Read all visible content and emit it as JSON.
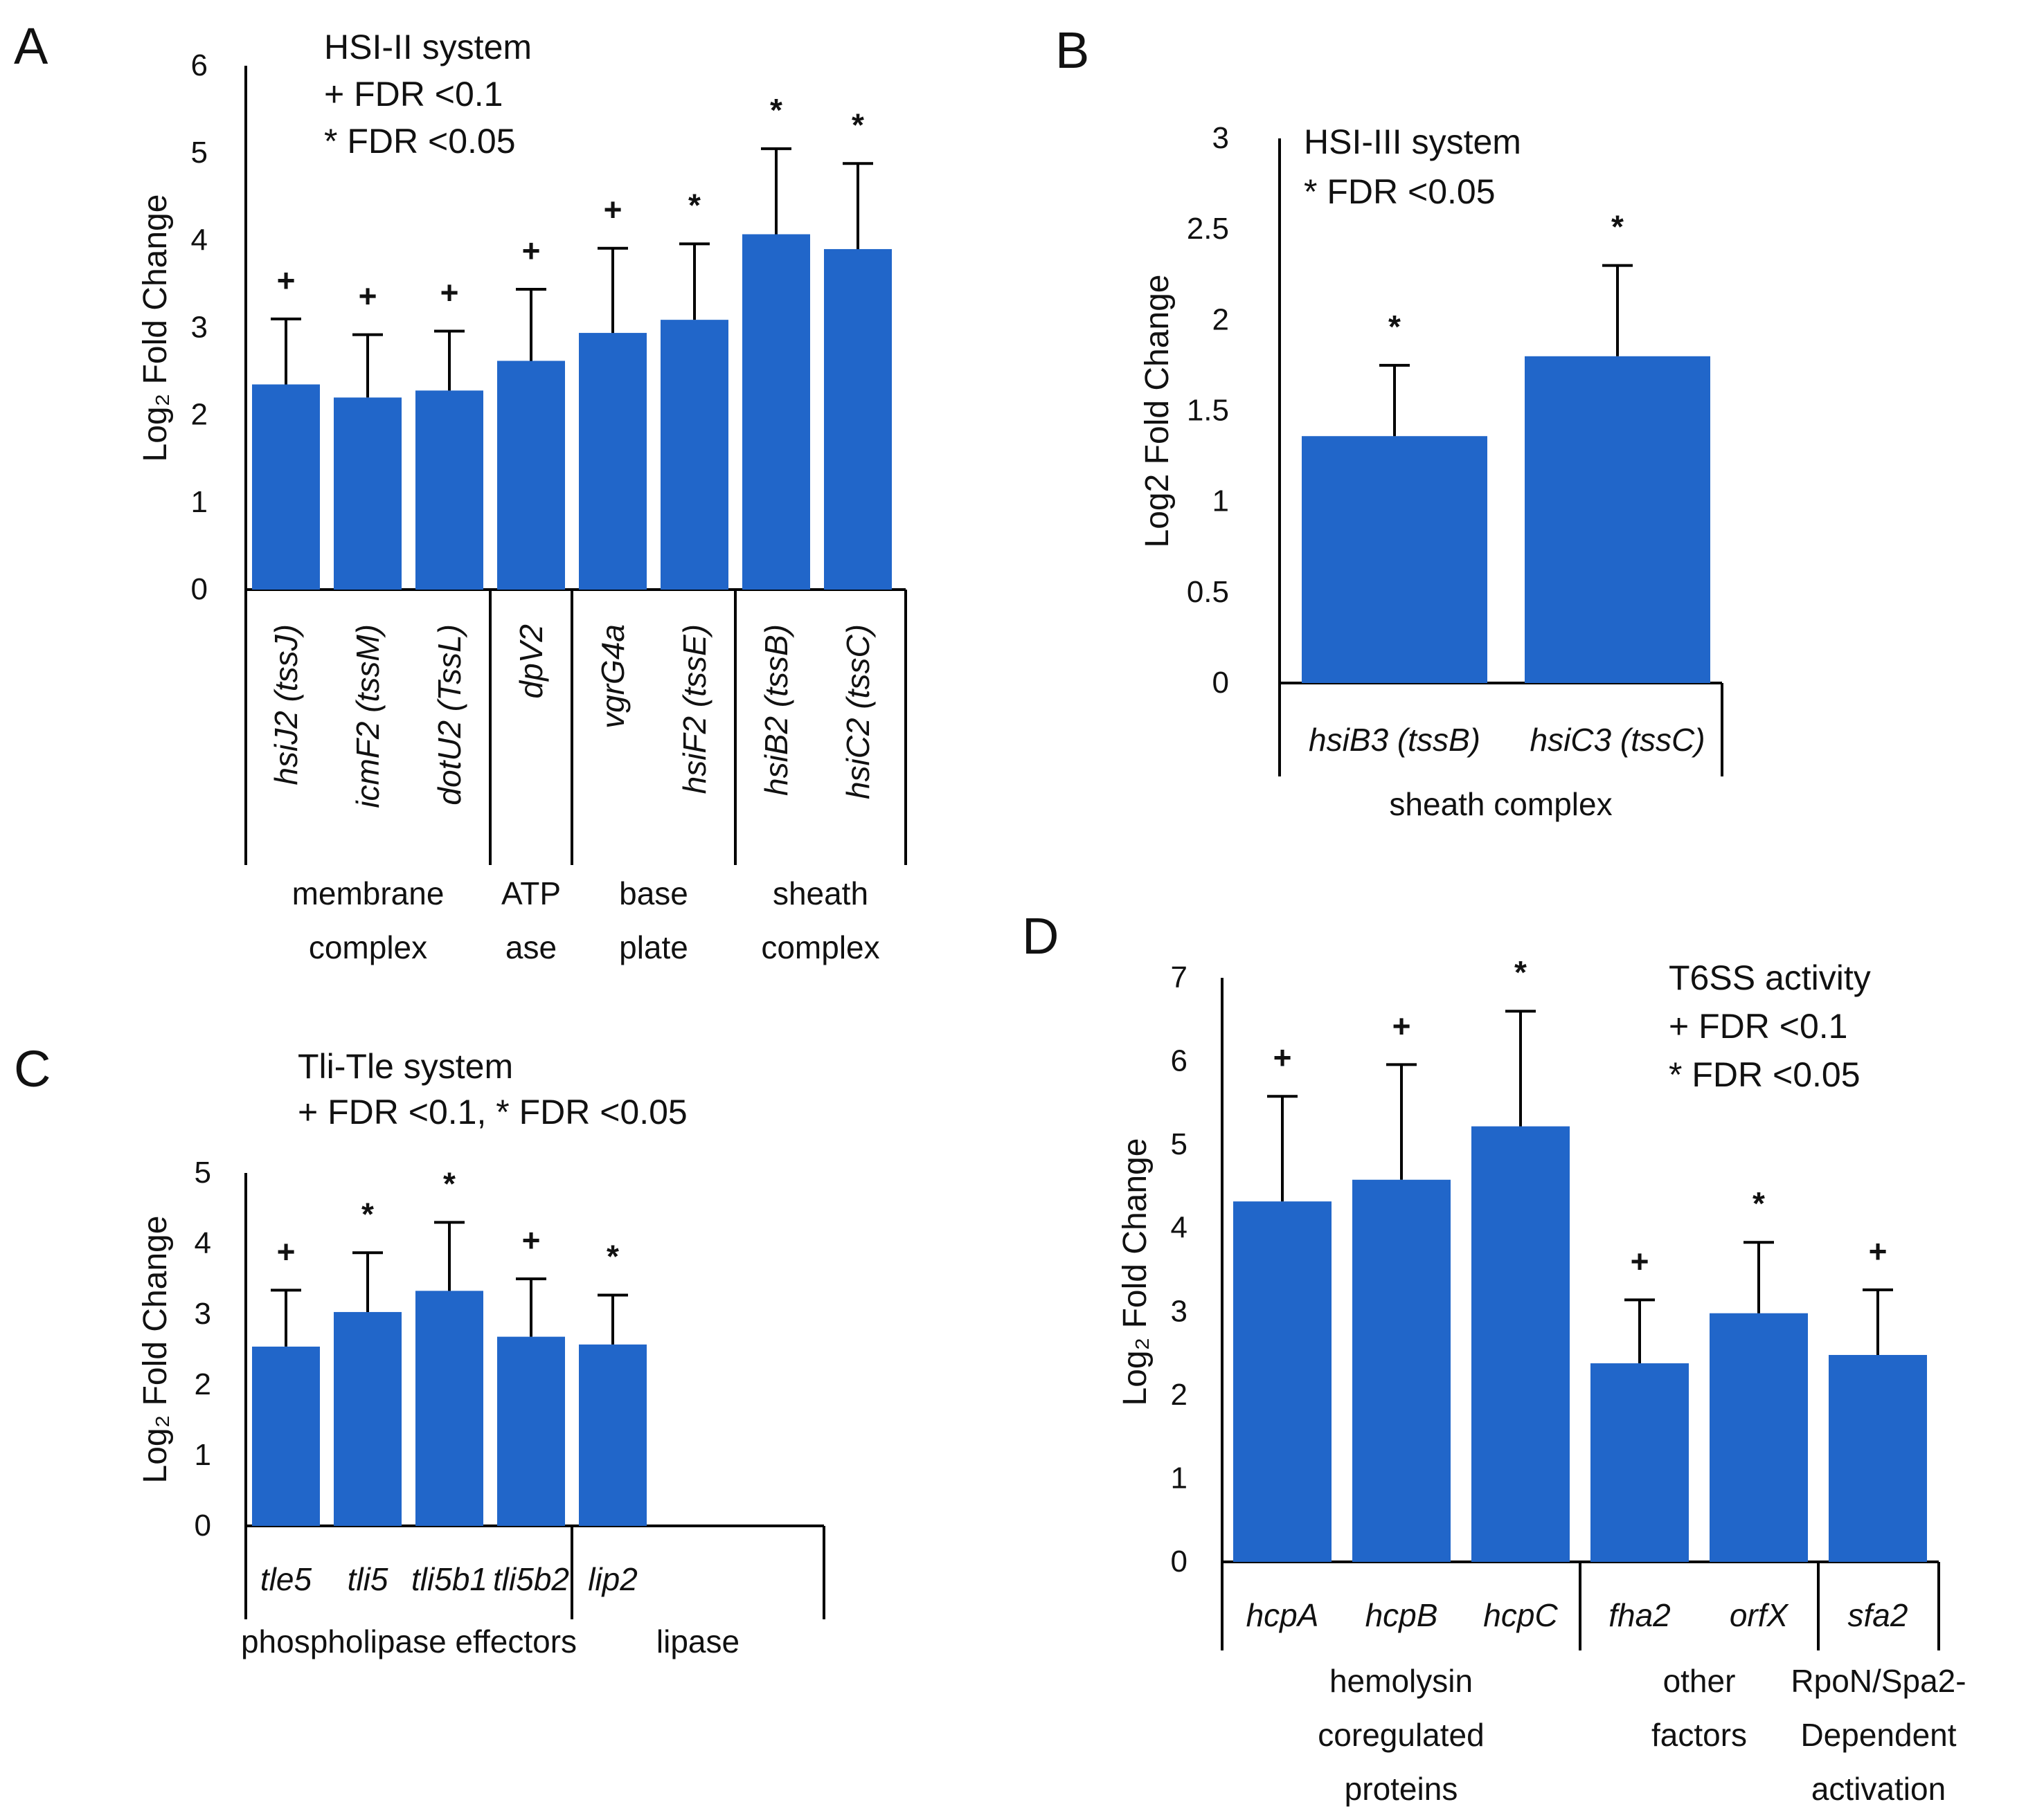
{
  "colors": {
    "bar": "#2166c9",
    "axis": "#000000",
    "text": "#111111"
  },
  "chart_data": [
    {
      "panel": "A",
      "type": "bar",
      "legend": [
        "HSI-II system",
        "+ FDR <0.1",
        "* FDR <0.05"
      ],
      "ylabel": "Log₂ Fold Change",
      "ylim": [
        0,
        6
      ],
      "yticks": [
        "0",
        "1",
        "2",
        "3",
        "4",
        "5",
        "6"
      ],
      "categories": [
        "hsiJ2 (tssJ)",
        "icmF2 (tssM)",
        "dotU2 (TssL)",
        "dpV2",
        "vgrG4a",
        "hsiF2 (tssE)",
        "hsiB2 (tssB)",
        "hsiC2 (tssC)"
      ],
      "values": [
        2.35,
        2.2,
        2.28,
        2.62,
        2.94,
        3.09,
        4.07,
        3.9
      ],
      "errors": [
        0.75,
        0.72,
        0.68,
        0.82,
        0.97,
        0.87,
        0.98,
        0.98
      ],
      "significance": [
        "+",
        "+",
        "+",
        "+",
        "+",
        "*",
        "*",
        "*"
      ],
      "groups": [
        {
          "lines": [
            "membrane",
            "complex"
          ],
          "count": 3
        },
        {
          "lines": [
            "ATP",
            "ase"
          ],
          "count": 1
        },
        {
          "lines": [
            "base",
            "plate"
          ],
          "count": 2
        },
        {
          "lines": [
            "sheath",
            "complex"
          ],
          "count": 2
        }
      ]
    },
    {
      "panel": "B",
      "type": "bar",
      "legend": [
        "HSI-III system",
        "* FDR <0.05"
      ],
      "ylabel": "Log2 Fold Change",
      "ylim": [
        0,
        3
      ],
      "yticks": [
        "0",
        "0.5",
        "1",
        "1.5",
        "2",
        "2.5",
        "3"
      ],
      "categories": [
        "hsiB3 (tssB)",
        "hsiC3 (tssC)"
      ],
      "values": [
        1.36,
        1.8
      ],
      "errors": [
        0.39,
        0.5
      ],
      "significance": [
        "*",
        "*"
      ],
      "groups": [
        {
          "lines": [
            "sheath complex"
          ],
          "count": 2
        }
      ]
    },
    {
      "panel": "C",
      "type": "bar",
      "legend": [
        "Tli-Tle system",
        "+ FDR <0.1, * FDR <0.05"
      ],
      "ylabel": "Log₂ Fold Change",
      "ylim": [
        0,
        5
      ],
      "yticks": [
        "0",
        "1",
        "2",
        "3",
        "4",
        "5"
      ],
      "categories": [
        "tle5",
        "tli5",
        "tli5b1",
        "tli5b2",
        "lip2"
      ],
      "values": [
        2.54,
        3.03,
        3.33,
        2.68,
        2.57
      ],
      "errors": [
        0.8,
        0.84,
        0.97,
        0.82,
        0.7
      ],
      "significance": [
        "+",
        "*",
        "*",
        "+",
        "*"
      ],
      "groups": [
        {
          "lines": [
            "phospholipase effectors"
          ],
          "count": 4
        },
        {
          "lines": [
            "lipase"
          ],
          "count": 1
        }
      ]
    },
    {
      "panel": "D",
      "type": "bar",
      "legend": [
        "T6SS activity",
        "+ FDR <0.1",
        "* FDR <0.05"
      ],
      "ylabel": "Log₂ Fold Change",
      "ylim": [
        0,
        7
      ],
      "yticks": [
        "0",
        "1",
        "2",
        "3",
        "4",
        "5",
        "6",
        "7"
      ],
      "categories": [
        "hcpA",
        "hcpB",
        "hcpC",
        "fha2",
        "orfX",
        "sfa2"
      ],
      "values": [
        4.32,
        4.58,
        5.22,
        2.38,
        2.98,
        2.48
      ],
      "errors": [
        1.26,
        1.38,
        1.38,
        0.76,
        0.85,
        0.78
      ],
      "significance": [
        "+",
        "+",
        "*",
        "+",
        "*",
        "+"
      ],
      "groups": [
        {
          "lines": [
            "hemolysin",
            "coregulated",
            "proteins"
          ],
          "count": 3
        },
        {
          "lines": [
            "other",
            "factors"
          ],
          "count": 2
        },
        {
          "lines": [
            "RpoN/Spa2-",
            "Dependent",
            "activation"
          ],
          "count": 1
        }
      ]
    }
  ]
}
